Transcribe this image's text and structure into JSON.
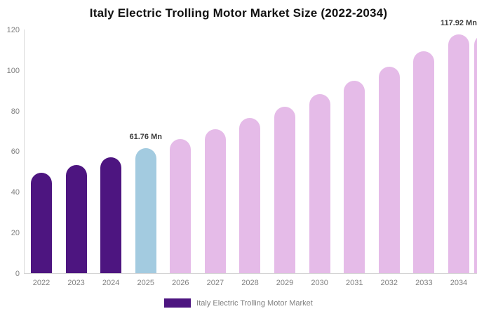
{
  "chart_data": {
    "type": "bar",
    "title": "Italy Electric Trolling Motor Market Size (2022-2034)",
    "categories": [
      "2022",
      "2023",
      "2024",
      "2025",
      "2026",
      "2027",
      "2028",
      "2029",
      "2030",
      "2031",
      "2032",
      "2033",
      "2034"
    ],
    "values": [
      49.78,
      53.49,
      57.47,
      61.76,
      66.36,
      71.3,
      76.61,
      82.32,
      88.45,
      95.04,
      102.12,
      109.73,
      117.92
    ],
    "color_roles": [
      "historical",
      "historical",
      "historical",
      "highlight",
      "forecast",
      "forecast",
      "forecast",
      "forecast",
      "forecast",
      "forecast",
      "forecast",
      "forecast",
      "forecast"
    ],
    "point_labels": [
      {
        "index": 3,
        "text": "61.76 Mn"
      },
      {
        "index": 12,
        "text": "117.92 Mn"
      }
    ],
    "xlabel": "",
    "ylabel": "",
    "y_ticks": [
      0,
      20,
      40,
      60,
      80,
      100,
      120
    ],
    "ylim": [
      0,
      120
    ],
    "grid": false,
    "legend_position": "bottom",
    "right_edge_partial_bar": true
  },
  "colors": {
    "historical": "#4d1580",
    "highlight": "#a3cbe0",
    "forecast": "#e5bbe8",
    "axis_line": "#d9d9d9",
    "tick_text": "#808080",
    "value_label_text": "#3d3d3d",
    "title_text": "#111111"
  },
  "legend": {
    "label": "Italy Electric Trolling Motor Market",
    "swatch_color": "#4d1580"
  }
}
